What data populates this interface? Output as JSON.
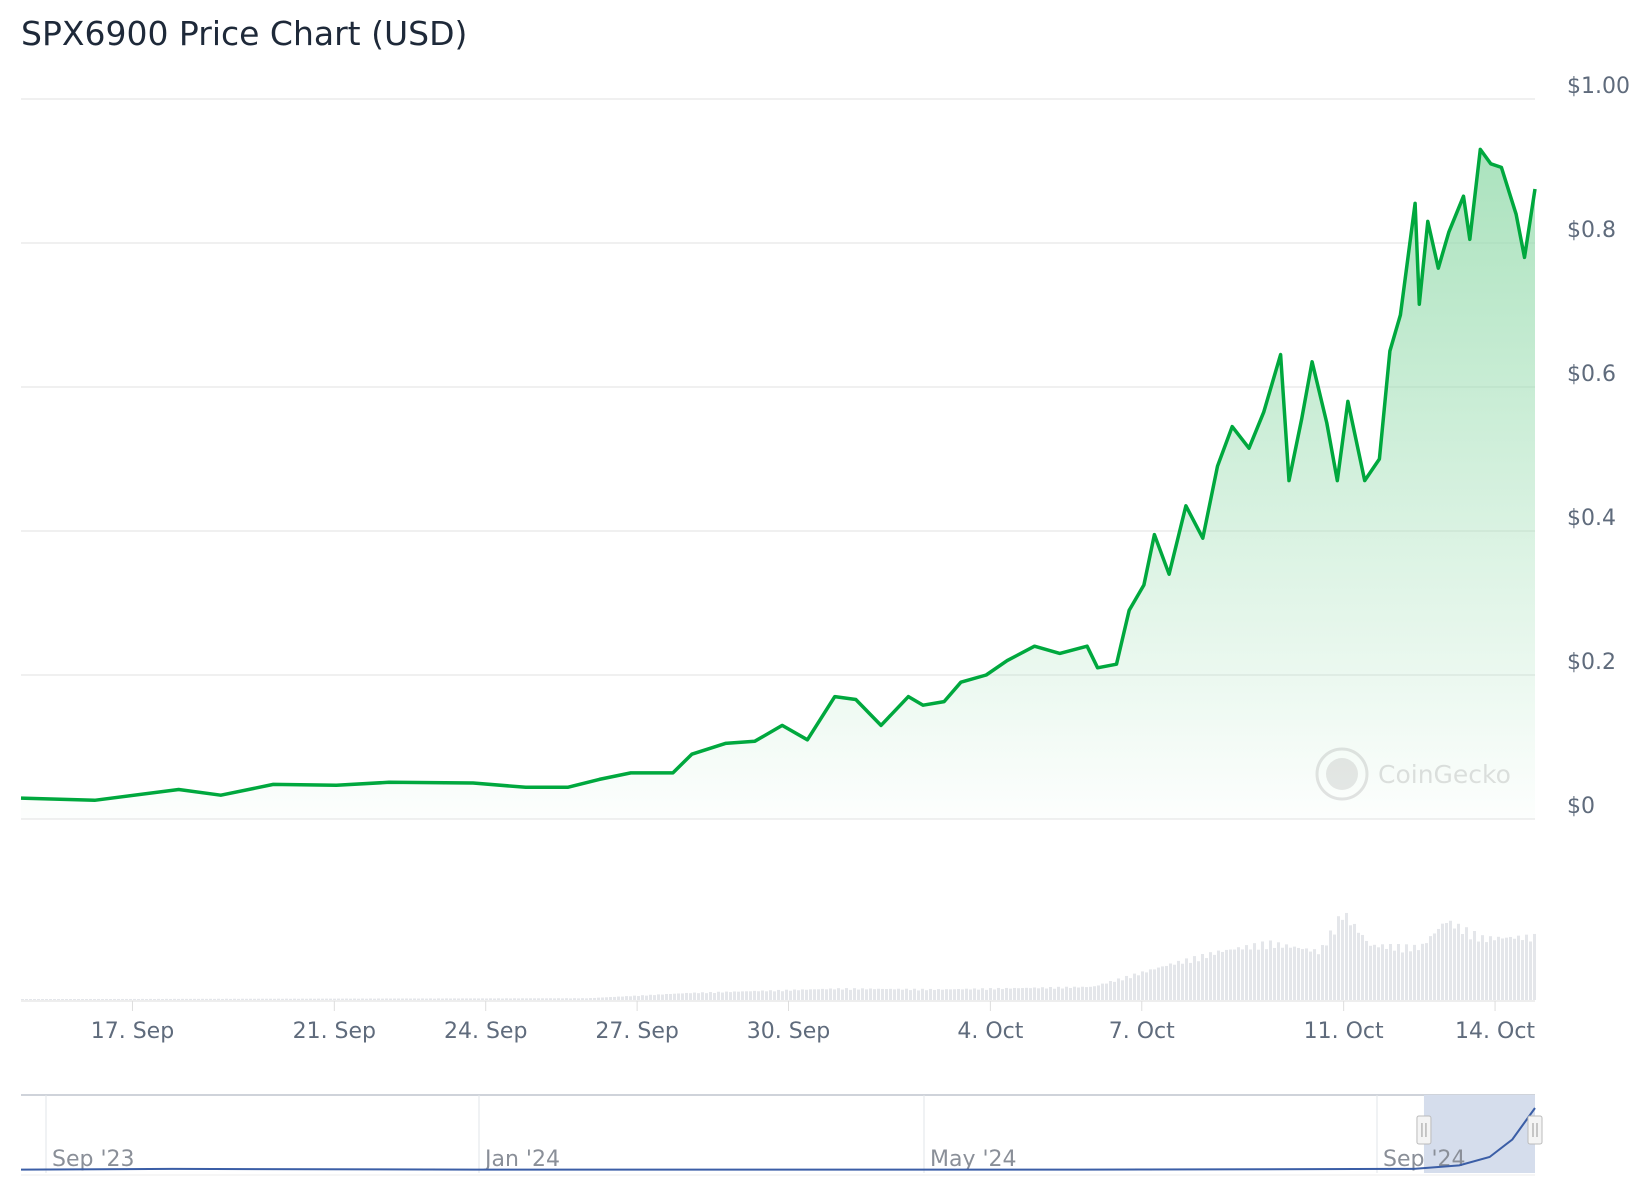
{
  "title": "SPX6900 Price Chart (USD)",
  "watermark": "CoinGecko",
  "colors": {
    "line": "#00a83e",
    "fill": "#8fd9a8",
    "grid": "#e6e6e6",
    "navigator_line": "#3b5ea6",
    "navigator_mask": "#d5ddec"
  },
  "chart_data": {
    "type": "area",
    "title": "SPX6900 Price Chart (USD)",
    "xlabel": "",
    "ylabel": "",
    "ylim": [
      0,
      1.0
    ],
    "y_ticks": [
      "$0",
      "$0.2",
      "$0.4",
      "$0.6",
      "$0.8",
      "$1.00"
    ],
    "y_tick_values": [
      0,
      0.2,
      0.4,
      0.6,
      0.8,
      1.0
    ],
    "x_ticks": [
      {
        "label": "17. Sep",
        "date": "2024-09-17"
      },
      {
        "label": "21. Sep",
        "date": "2024-09-21"
      },
      {
        "label": "24. Sep",
        "date": "2024-09-24"
      },
      {
        "label": "27. Sep",
        "date": "2024-09-27"
      },
      {
        "label": "30. Sep",
        "date": "2024-09-30"
      },
      {
        "label": "4. Oct",
        "date": "2024-10-04"
      },
      {
        "label": "7. Oct",
        "date": "2024-10-07"
      },
      {
        "label": "11. Oct",
        "date": "2024-10-11"
      },
      {
        "label": "14. Oct",
        "date": "2024-10-14"
      }
    ],
    "xlim": [
      "2024-09-14T19:00",
      "2024-10-14T19:00"
    ],
    "grid": true,
    "legend": "none",
    "series": [
      {
        "points": [
          [
            "2024-09-14T19:00",
            0.029
          ],
          [
            "2024-09-16T06:00",
            0.026
          ],
          [
            "2024-09-17T22:00",
            0.041
          ],
          [
            "2024-09-18T18:00",
            0.033
          ],
          [
            "2024-09-19T19:00",
            0.048
          ],
          [
            "2024-09-21T01:00",
            0.047
          ],
          [
            "2024-09-22T02:00",
            0.051
          ],
          [
            "2024-09-23T18:00",
            0.05
          ],
          [
            "2024-09-24T19:00",
            0.044
          ],
          [
            "2024-09-25T15:00",
            0.044
          ],
          [
            "2024-09-26T06:00",
            0.055
          ],
          [
            "2024-09-26T21:00",
            0.064
          ],
          [
            "2024-09-27T17:00",
            0.064
          ],
          [
            "2024-09-28T02:00",
            0.09
          ],
          [
            "2024-09-28T18:00",
            0.105
          ],
          [
            "2024-09-29T08:00",
            0.108
          ],
          [
            "2024-09-29T21:00",
            0.13
          ],
          [
            "2024-09-30T09:00",
            0.11
          ],
          [
            "2024-09-30T22:00",
            0.17
          ],
          [
            "2024-10-01T08:00",
            0.166
          ],
          [
            "2024-10-01T20:00",
            0.13
          ],
          [
            "2024-10-02T09:00",
            0.17
          ],
          [
            "2024-10-02T16:00",
            0.158
          ],
          [
            "2024-10-03T02:00",
            0.163
          ],
          [
            "2024-10-03T10:00",
            0.19
          ],
          [
            "2024-10-03T22:00",
            0.2
          ],
          [
            "2024-10-04T08:00",
            0.22
          ],
          [
            "2024-10-04T21:00",
            0.24
          ],
          [
            "2024-10-05T09:00",
            0.23
          ],
          [
            "2024-10-05T22:00",
            0.24
          ],
          [
            "2024-10-06T03:00",
            0.21
          ],
          [
            "2024-10-06T12:00",
            0.215
          ],
          [
            "2024-10-06T18:00",
            0.29
          ],
          [
            "2024-10-07T01:00",
            0.325
          ],
          [
            "2024-10-07T06:00",
            0.395
          ],
          [
            "2024-10-07T13:00",
            0.34
          ],
          [
            "2024-10-07T21:00",
            0.435
          ],
          [
            "2024-10-08T05:00",
            0.39
          ],
          [
            "2024-10-08T12:00",
            0.49
          ],
          [
            "2024-10-08T19:00",
            0.545
          ],
          [
            "2024-10-09T03:00",
            0.515
          ],
          [
            "2024-10-09T10:00",
            0.565
          ],
          [
            "2024-10-09T18:00",
            0.645
          ],
          [
            "2024-10-09T22:00",
            0.47
          ],
          [
            "2024-10-10T04:00",
            0.555
          ],
          [
            "2024-10-10T09:00",
            0.635
          ],
          [
            "2024-10-10T16:00",
            0.55
          ],
          [
            "2024-10-10T21:00",
            0.47
          ],
          [
            "2024-10-11T02:00",
            0.58
          ],
          [
            "2024-10-11T10:00",
            0.47
          ],
          [
            "2024-10-11T17:00",
            0.5
          ],
          [
            "2024-10-11T22:00",
            0.65
          ],
          [
            "2024-10-12T03:00",
            0.7
          ],
          [
            "2024-10-12T10:00",
            0.855
          ],
          [
            "2024-10-12T12:00",
            0.715
          ],
          [
            "2024-10-12T16:00",
            0.83
          ],
          [
            "2024-10-12T21:00",
            0.765
          ],
          [
            "2024-10-13T02:00",
            0.815
          ],
          [
            "2024-10-13T09:00",
            0.865
          ],
          [
            "2024-10-13T12:00",
            0.805
          ],
          [
            "2024-10-13T17:00",
            0.93
          ],
          [
            "2024-10-13T22:00",
            0.91
          ],
          [
            "2024-10-14T03:00",
            0.905
          ],
          [
            "2024-10-14T10:00",
            0.84
          ],
          [
            "2024-10-14T14:00",
            0.78
          ],
          [
            "2024-10-14T19:00",
            0.875
          ]
        ]
      }
    ],
    "volume_relative": [
      [
        "2024-09-14T19:00",
        0.01
      ],
      [
        "2024-09-26T00:00",
        0.02
      ],
      [
        "2024-09-28T00:00",
        0.08
      ],
      [
        "2024-10-01T00:00",
        0.13
      ],
      [
        "2024-10-03T00:00",
        0.12
      ],
      [
        "2024-10-06T00:00",
        0.15
      ],
      [
        "2024-10-07T12:00",
        0.4
      ],
      [
        "2024-10-08T12:00",
        0.55
      ],
      [
        "2024-10-09T12:00",
        0.65
      ],
      [
        "2024-10-10T12:00",
        0.55
      ],
      [
        "2024-10-10T23:00",
        1.0
      ],
      [
        "2024-10-11T12:00",
        0.62
      ],
      [
        "2024-10-12T12:00",
        0.6
      ],
      [
        "2024-10-13T00:00",
        0.9
      ],
      [
        "2024-10-13T18:00",
        0.7
      ],
      [
        "2024-10-14T19:00",
        0.72
      ]
    ]
  },
  "navigator": {
    "labels": [
      "Sep '23",
      "Jan '24",
      "May '24",
      "Sep '24"
    ],
    "range": [
      "2023-09-01",
      "2024-10-14"
    ],
    "selected": [
      "2024-09-14",
      "2024-10-14"
    ],
    "series_relative": [
      [
        0,
        0.02
      ],
      [
        0.1,
        0.03
      ],
      [
        0.3,
        0.02
      ],
      [
        0.5,
        0.02
      ],
      [
        0.7,
        0.02
      ],
      [
        0.92,
        0.03
      ],
      [
        0.95,
        0.08
      ],
      [
        0.97,
        0.2
      ],
      [
        0.985,
        0.45
      ],
      [
        1.0,
        0.9
      ]
    ]
  }
}
